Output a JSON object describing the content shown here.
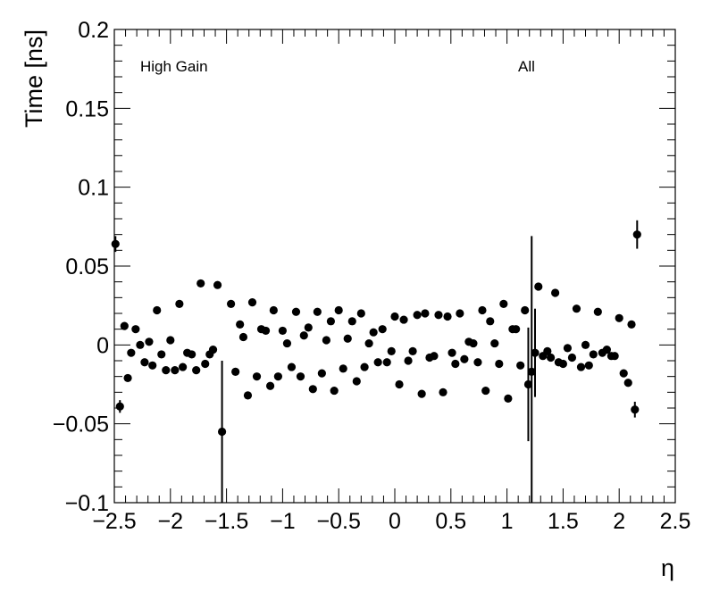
{
  "chart_data": {
    "type": "scatter",
    "xlabel": "η",
    "ylabel": "Time [ns]",
    "xlim": [
      -2.5,
      2.5
    ],
    "ylim": [
      -0.1,
      0.2
    ],
    "xticks": [
      "−2.5",
      "−2",
      "−1.5",
      "−1",
      "−0.5",
      "0",
      "0.5",
      "1",
      "1.5",
      "2",
      "2.5"
    ],
    "xtick_values": [
      -2.5,
      -2,
      -1.5,
      -1,
      -0.5,
      0,
      0.5,
      1,
      1.5,
      2,
      2.5
    ],
    "yticks": [
      "−0.1",
      "−0.05",
      "0",
      "0.05",
      "0.1",
      "0.15",
      "0.2"
    ],
    "ytick_values": [
      -0.1,
      -0.05,
      0,
      0.05,
      0.1,
      0.15,
      0.2
    ],
    "annotations": [
      "High Gain",
      "All"
    ],
    "grid": false,
    "marker_color": "#000000",
    "points": [
      {
        "x": -2.49,
        "y": 0.064,
        "err": 0.005
      },
      {
        "x": -2.45,
        "y": -0.039,
        "err": 0.004
      },
      {
        "x": -2.41,
        "y": 0.012
      },
      {
        "x": -2.38,
        "y": -0.021
      },
      {
        "x": -2.35,
        "y": -0.005
      },
      {
        "x": -2.31,
        "y": 0.01
      },
      {
        "x": -2.27,
        "y": 0.0
      },
      {
        "x": -2.23,
        "y": -0.011
      },
      {
        "x": -2.19,
        "y": 0.002
      },
      {
        "x": -2.16,
        "y": -0.013
      },
      {
        "x": -2.12,
        "y": 0.022
      },
      {
        "x": -2.08,
        "y": -0.006
      },
      {
        "x": -2.04,
        "y": -0.016
      },
      {
        "x": -2.0,
        "y": 0.003
      },
      {
        "x": -1.96,
        "y": -0.016
      },
      {
        "x": -1.92,
        "y": 0.026
      },
      {
        "x": -1.89,
        "y": -0.014
      },
      {
        "x": -1.85,
        "y": -0.005
      },
      {
        "x": -1.81,
        "y": -0.006
      },
      {
        "x": -1.77,
        "y": -0.016
      },
      {
        "x": -1.73,
        "y": 0.039
      },
      {
        "x": -1.69,
        "y": -0.012
      },
      {
        "x": -1.65,
        "y": -0.006
      },
      {
        "x": -1.62,
        "y": -0.003
      },
      {
        "x": -1.58,
        "y": 0.038
      },
      {
        "x": -1.54,
        "y": -0.055,
        "err": 0.045
      },
      {
        "x": -1.46,
        "y": 0.026
      },
      {
        "x": -1.42,
        "y": -0.017
      },
      {
        "x": -1.38,
        "y": 0.013
      },
      {
        "x": -1.35,
        "y": 0.005
      },
      {
        "x": -1.31,
        "y": -0.032
      },
      {
        "x": -1.27,
        "y": 0.027
      },
      {
        "x": -1.23,
        "y": -0.02
      },
      {
        "x": -1.19,
        "y": 0.01
      },
      {
        "x": -1.15,
        "y": 0.009
      },
      {
        "x": -1.11,
        "y": -0.026
      },
      {
        "x": -1.08,
        "y": 0.022
      },
      {
        "x": -1.04,
        "y": -0.02
      },
      {
        "x": -1.0,
        "y": 0.009
      },
      {
        "x": -0.96,
        "y": 0.001
      },
      {
        "x": -0.92,
        "y": -0.014
      },
      {
        "x": -0.88,
        "y": 0.021
      },
      {
        "x": -0.84,
        "y": -0.02
      },
      {
        "x": -0.81,
        "y": 0.006
      },
      {
        "x": -0.77,
        "y": 0.011
      },
      {
        "x": -0.73,
        "y": -0.028
      },
      {
        "x": -0.69,
        "y": 0.021
      },
      {
        "x": -0.65,
        "y": -0.018
      },
      {
        "x": -0.61,
        "y": 0.003
      },
      {
        "x": -0.57,
        "y": 0.015
      },
      {
        "x": -0.54,
        "y": -0.029
      },
      {
        "x": -0.5,
        "y": 0.022
      },
      {
        "x": -0.46,
        "y": -0.015
      },
      {
        "x": -0.42,
        "y": 0.004
      },
      {
        "x": -0.38,
        "y": 0.015
      },
      {
        "x": -0.34,
        "y": -0.023
      },
      {
        "x": -0.3,
        "y": 0.02
      },
      {
        "x": -0.27,
        "y": -0.014
      },
      {
        "x": -0.23,
        "y": 0.001
      },
      {
        "x": -0.19,
        "y": 0.008
      },
      {
        "x": -0.15,
        "y": -0.011
      },
      {
        "x": -0.11,
        "y": 0.01
      },
      {
        "x": -0.07,
        "y": -0.011
      },
      {
        "x": -0.03,
        "y": -0.004
      },
      {
        "x": 0.0,
        "y": 0.018
      },
      {
        "x": 0.04,
        "y": -0.025
      },
      {
        "x": 0.08,
        "y": 0.016
      },
      {
        "x": 0.12,
        "y": -0.01
      },
      {
        "x": 0.16,
        "y": -0.004
      },
      {
        "x": 0.2,
        "y": 0.019
      },
      {
        "x": 0.24,
        "y": -0.031
      },
      {
        "x": 0.27,
        "y": 0.02
      },
      {
        "x": 0.31,
        "y": -0.008
      },
      {
        "x": 0.35,
        "y": -0.007
      },
      {
        "x": 0.39,
        "y": 0.019
      },
      {
        "x": 0.43,
        "y": -0.03
      },
      {
        "x": 0.47,
        "y": 0.018
      },
      {
        "x": 0.51,
        "y": -0.005
      },
      {
        "x": 0.54,
        "y": -0.012
      },
      {
        "x": 0.58,
        "y": 0.02
      },
      {
        "x": 0.62,
        "y": -0.009
      },
      {
        "x": 0.66,
        "y": 0.002
      },
      {
        "x": 0.7,
        "y": 0.001
      },
      {
        "x": 0.74,
        "y": -0.011
      },
      {
        "x": 0.78,
        "y": 0.022
      },
      {
        "x": 0.81,
        "y": -0.029
      },
      {
        "x": 0.85,
        "y": 0.015
      },
      {
        "x": 0.89,
        "y": 0.001
      },
      {
        "x": 0.93,
        "y": -0.012
      },
      {
        "x": 0.97,
        "y": 0.026
      },
      {
        "x": 1.01,
        "y": -0.034
      },
      {
        "x": 1.05,
        "y": 0.01
      },
      {
        "x": 1.08,
        "y": 0.01
      },
      {
        "x": 1.12,
        "y": -0.013
      },
      {
        "x": 1.16,
        "y": 0.022
      },
      {
        "x": 1.19,
        "y": -0.025,
        "err": 0.036
      },
      {
        "x": 1.22,
        "y": -0.017,
        "err": 0.086
      },
      {
        "x": 1.25,
        "y": -0.005,
        "err": 0.028
      },
      {
        "x": 1.28,
        "y": 0.037
      },
      {
        "x": 1.32,
        "y": -0.007
      },
      {
        "x": 1.36,
        "y": -0.004
      },
      {
        "x": 1.39,
        "y": -0.008
      },
      {
        "x": 1.43,
        "y": 0.033
      },
      {
        "x": 1.46,
        "y": -0.011
      },
      {
        "x": 1.5,
        "y": -0.012
      },
      {
        "x": 1.54,
        "y": -0.002
      },
      {
        "x": 1.58,
        "y": -0.008
      },
      {
        "x": 1.62,
        "y": 0.023
      },
      {
        "x": 1.66,
        "y": -0.014
      },
      {
        "x": 1.7,
        "y": 0.0
      },
      {
        "x": 1.73,
        "y": -0.013
      },
      {
        "x": 1.77,
        "y": -0.006
      },
      {
        "x": 1.81,
        "y": 0.021
      },
      {
        "x": 1.85,
        "y": -0.005
      },
      {
        "x": 1.89,
        "y": -0.003
      },
      {
        "x": 1.93,
        "y": -0.007
      },
      {
        "x": 1.96,
        "y": -0.007
      },
      {
        "x": 2.0,
        "y": 0.017
      },
      {
        "x": 2.04,
        "y": -0.018
      },
      {
        "x": 2.08,
        "y": -0.024
      },
      {
        "x": 2.11,
        "y": 0.013
      },
      {
        "x": 2.14,
        "y": -0.041,
        "err": 0.005
      },
      {
        "x": 2.16,
        "y": 0.07,
        "err": 0.009
      }
    ]
  }
}
